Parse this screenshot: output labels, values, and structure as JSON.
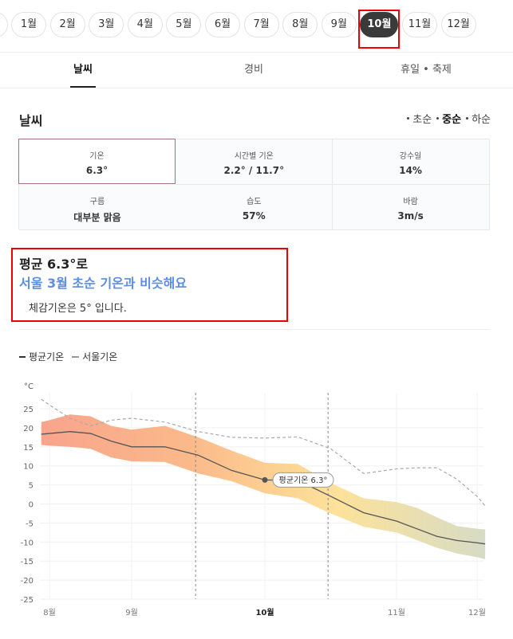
{
  "months": {
    "items": [
      "1월",
      "2월",
      "3월",
      "4월",
      "5월",
      "6월",
      "7월",
      "8월",
      "9월",
      "10월",
      "11월",
      "12월"
    ],
    "selected": 9
  },
  "tabs": {
    "items": [
      "날씨",
      "경비",
      "휴일 • 축제"
    ],
    "selected": 0
  },
  "section": {
    "title": "날씨",
    "periods": [
      "초순",
      "중순",
      "하순"
    ],
    "selected": 1
  },
  "stats": [
    {
      "label": "기온",
      "value": "6.3°"
    },
    {
      "label": "시간별 기온",
      "value": "2.2° / 11.7°"
    },
    {
      "label": "강수일",
      "value": "14%"
    },
    {
      "label": "구름",
      "value": "대부분 맑음"
    },
    {
      "label": "습도",
      "value": "57%"
    },
    {
      "label": "바람",
      "value": "3m/s"
    }
  ],
  "summary": {
    "headline": "평균 6.3°로",
    "comparison": "서울 3월 초순 기온과 비슷해요",
    "feels": "체감기온은 5° 입니다."
  },
  "chart_data": {
    "type": "line",
    "y_unit": "°C",
    "x": [
      7.9,
      8,
      8.25,
      8.5,
      8.75,
      9,
      9.25,
      9.5,
      9.75,
      10,
      10.25,
      10.5,
      10.75,
      11,
      11.25,
      11.5,
      11.75,
      12,
      12.1
    ],
    "series": [
      {
        "name": "평균기온",
        "color": "#555555",
        "dashed": false,
        "values": [
          18.3,
          18.5,
          19,
          18.5,
          16.5,
          15,
          15,
          12.8,
          8.8,
          6.3,
          6.2,
          2,
          -2.3,
          -4.5,
          -6.5,
          -8.5,
          -9.6,
          -10.2,
          -10.5
        ]
      },
      {
        "name": "서울기온",
        "color": "#aaaaaa",
        "dashed": true,
        "values": [
          27.5,
          26,
          22.5,
          20.5,
          22,
          22.5,
          21.5,
          19,
          17.5,
          17.3,
          17.6,
          14.5,
          8,
          9.2,
          9.5,
          9.5,
          6.5,
          2,
          -0.5
        ]
      }
    ],
    "band": {
      "upper": [
        21.5,
        22,
        23.5,
        23,
        20.5,
        19.5,
        20.5,
        17.5,
        14,
        10.8,
        10.5,
        5.5,
        1.5,
        0.5,
        -1,
        -3.5,
        -5.8,
        -6.5,
        -6.7
      ],
      "lower": [
        15.5,
        15.3,
        15,
        14.5,
        12.2,
        11.2,
        11,
        8,
        6,
        2.8,
        1.5,
        -2.5,
        -6,
        -7.5,
        -9.5,
        -11.5,
        -13,
        -14,
        -14.5
      ],
      "colors": [
        "#f9a48c",
        "#fbb98a",
        "#fde29a",
        "#d6dcc6"
      ]
    },
    "highlight_range": [
      9.48,
      10.48
    ],
    "annotation": {
      "x": 10,
      "y": 6.3,
      "text": "평균기온 6.3°"
    },
    "xlim": [
      7.9,
      12.1
    ],
    "xticks": [
      {
        "value": 8,
        "label": "8월"
      },
      {
        "value": 9,
        "label": "9월"
      },
      {
        "value": 10,
        "label": "10월"
      },
      {
        "value": 11,
        "label": "11월"
      },
      {
        "value": 12,
        "label": "12월"
      }
    ],
    "emphasized_xtick": 2,
    "ylim": [
      -25,
      25
    ],
    "yticks": [
      25,
      20,
      15,
      10,
      5,
      0,
      -5,
      -10,
      -15,
      -20,
      -25
    ],
    "grid": true
  }
}
